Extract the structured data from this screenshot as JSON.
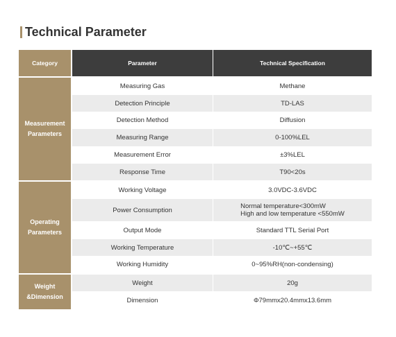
{
  "title": "Technical Parameter",
  "colors": {
    "accent": "#a8916b",
    "header_bg": "#3d3d3d",
    "stripe_bg": "#ebebeb",
    "text": "#333333"
  },
  "table": {
    "headers": {
      "category": "Category",
      "parameter": "Parameter",
      "specification": "Technical Specification"
    },
    "groups": [
      {
        "category": [
          "Measurement",
          "Parameters"
        ],
        "rows": [
          {
            "parameter": "Measuring Gas",
            "specification": "Methane"
          },
          {
            "parameter": "Detection Principle",
            "specification": "TD-LAS"
          },
          {
            "parameter": "Detection Method",
            "specification": "Diffusion"
          },
          {
            "parameter": "Measuring Range",
            "specification": "0-100%LEL"
          },
          {
            "parameter": "Measurement Error",
            "specification": "±3%LEL"
          },
          {
            "parameter": "Response Time",
            "specification": "T90<20s"
          }
        ]
      },
      {
        "category": [
          "Operating",
          "Parameters"
        ],
        "rows": [
          {
            "parameter": "Working Voltage",
            "specification": "3.0VDC-3.6VDC"
          },
          {
            "parameter": "Power Consumption",
            "specification": [
              "Normal temperature<300mW",
              "High and low temperature <550mW"
            ]
          },
          {
            "parameter": "Output Mode",
            "specification": "Standard TTL Serial Port"
          },
          {
            "parameter": "Working Temperature",
            "specification": "-10℃~+55℃"
          },
          {
            "parameter": "Working Humidity",
            "specification": "0~95%RH(non-condensing)"
          }
        ]
      },
      {
        "category": [
          "Weight",
          "&Dimension"
        ],
        "rows": [
          {
            "parameter": "Weight",
            "specification": "20g"
          },
          {
            "parameter": "Dimension",
            "specification": "Φ79mmx20.4mmx13.6mm"
          }
        ]
      }
    ]
  }
}
